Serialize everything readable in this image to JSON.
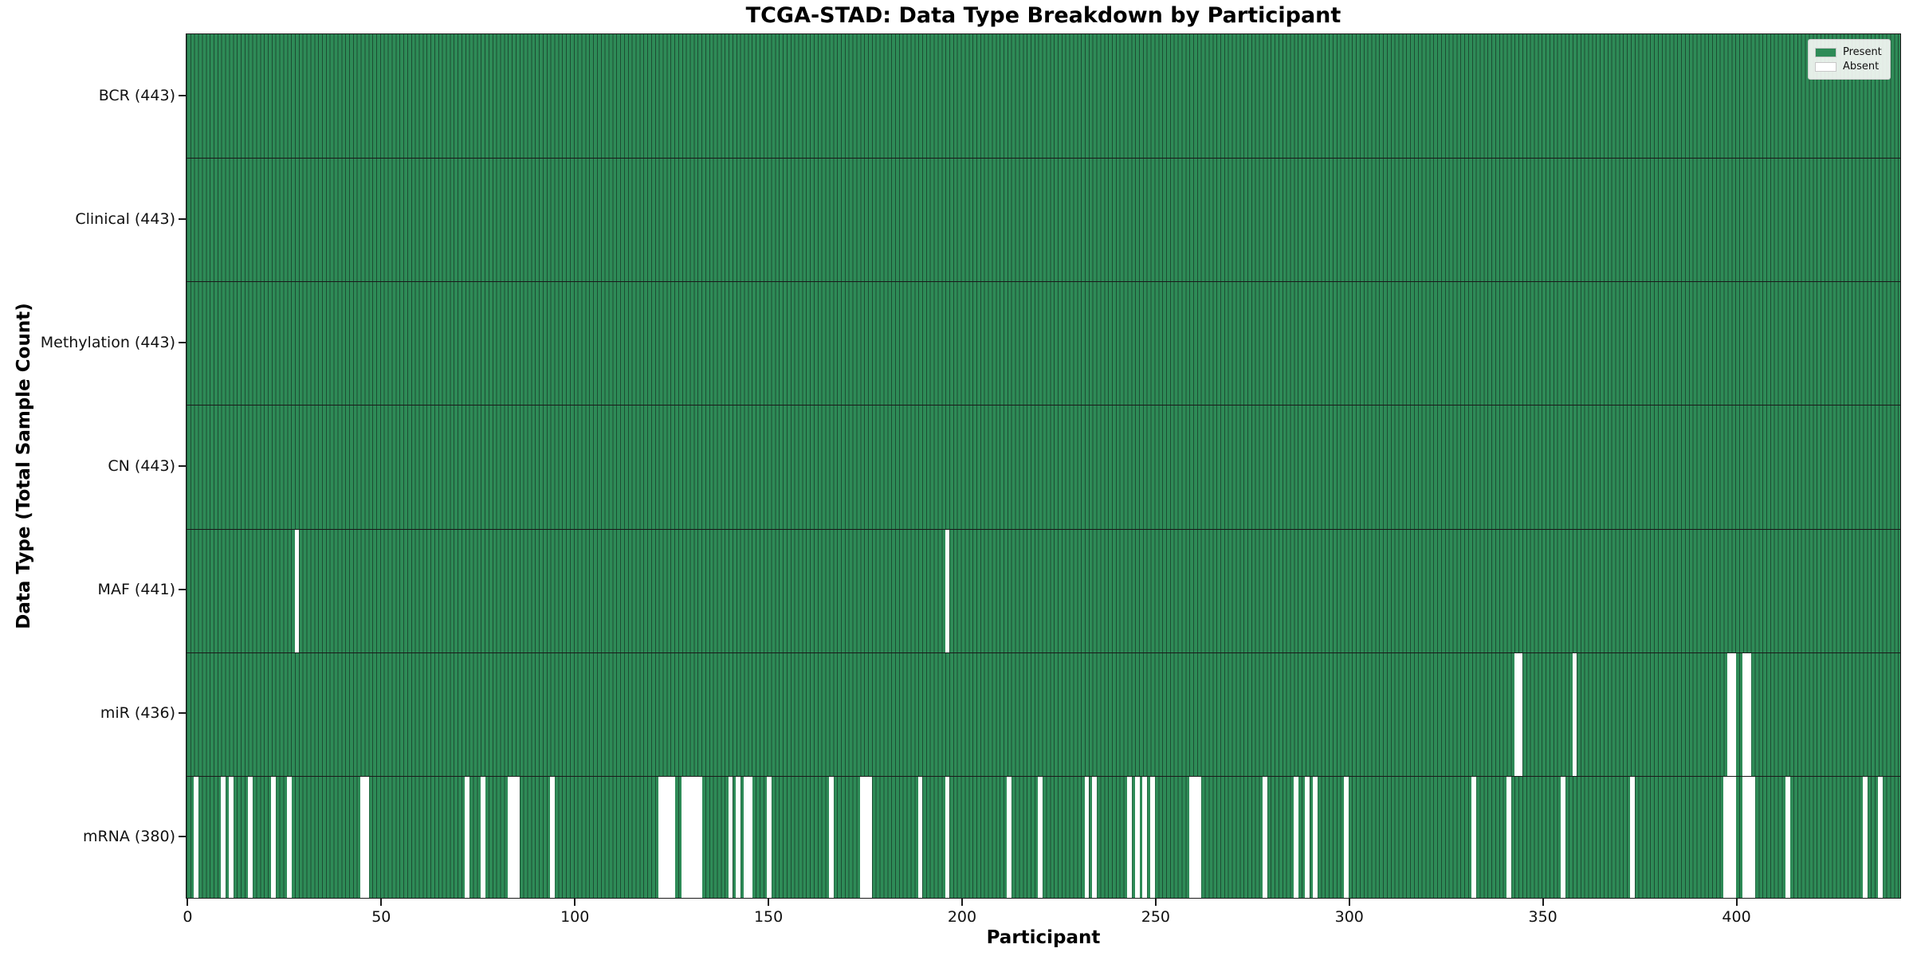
{
  "chart_data": {
    "type": "heatmap",
    "title": "TCGA-STAD: Data Type Breakdown by Participant",
    "xlabel": "Participant",
    "ylabel": "Data Type (Total Sample Count)",
    "legend_position": "upper right",
    "grid": false,
    "n_participants": 443,
    "xlim": [
      -0.5,
      442.5
    ],
    "x_ticks": [
      0,
      50,
      100,
      150,
      200,
      250,
      300,
      350,
      400
    ],
    "legend": [
      {
        "label": "Present",
        "color": "#2e8b57"
      },
      {
        "label": "Absent",
        "color": "#ffffff"
      }
    ],
    "colors": {
      "present": "#2e8b57",
      "absent": "#ffffff",
      "bar_edge": "#1d4d33",
      "row_separator": "#1a1a1a",
      "spine": "#1a1a1a",
      "legend_border": "#cccccc",
      "legend_bg": "#fafaf8",
      "text": "#000000"
    },
    "rows": [
      {
        "data_type": "BCR",
        "label": "BCR (443)",
        "present_count": 443,
        "absent_count": 0,
        "absent_participants": []
      },
      {
        "data_type": "Clinical",
        "label": "Clinical (443)",
        "present_count": 443,
        "absent_count": 0,
        "absent_participants": []
      },
      {
        "data_type": "Methylation",
        "label": "Methylation (443)",
        "present_count": 443,
        "absent_count": 0,
        "absent_participants": []
      },
      {
        "data_type": "CN",
        "label": "CN (443)",
        "present_count": 443,
        "absent_count": 0,
        "absent_participants": []
      },
      {
        "data_type": "MAF",
        "label": "MAF (441)",
        "present_count": 441,
        "absent_count": 2,
        "absent_participants": [
          28,
          196
        ]
      },
      {
        "data_type": "miR",
        "label": "miR (436)",
        "present_count": 436,
        "absent_count": 7,
        "absent_participants": [
          343,
          344,
          358,
          398,
          399,
          402,
          403
        ]
      },
      {
        "data_type": "mRNA",
        "label": "mRNA (380)",
        "present_count": 380,
        "absent_count": 63,
        "absent_participants": [
          2,
          9,
          11,
          16,
          22,
          26,
          45,
          46,
          72,
          76,
          83,
          84,
          85,
          94,
          122,
          123,
          124,
          125,
          128,
          129,
          130,
          131,
          132,
          140,
          142,
          144,
          145,
          150,
          166,
          174,
          175,
          176,
          189,
          196,
          212,
          220,
          232,
          234,
          243,
          245,
          247,
          249,
          259,
          260,
          261,
          278,
          286,
          289,
          291,
          299,
          332,
          341,
          355,
          373,
          397,
          398,
          399,
          402,
          403,
          404,
          413,
          433,
          437
        ]
      }
    ]
  }
}
